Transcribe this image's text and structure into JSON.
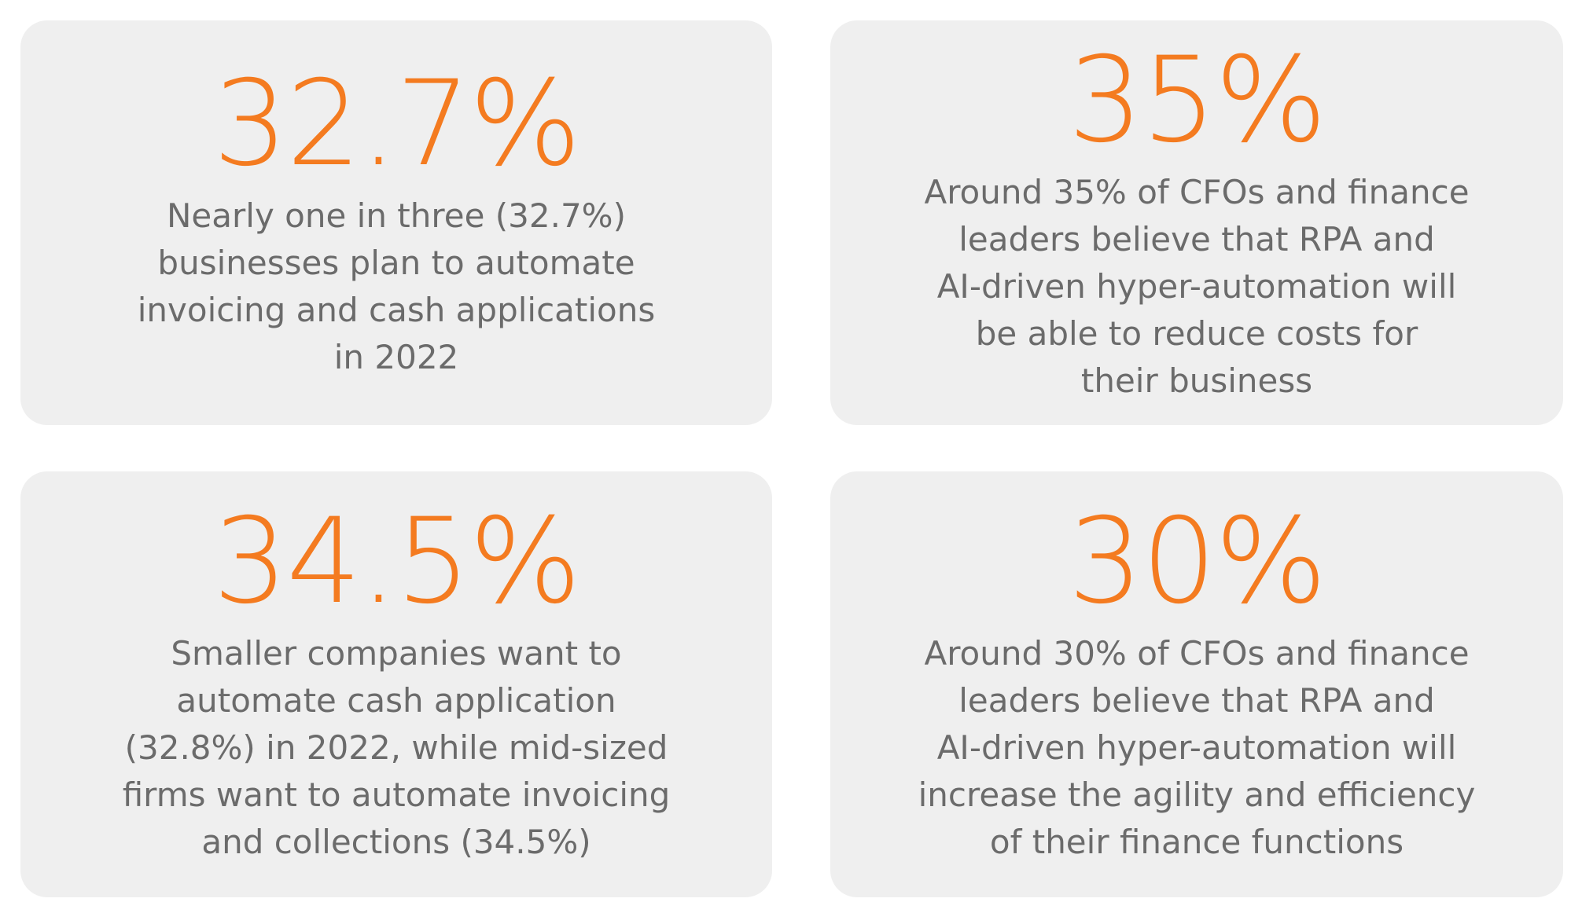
{
  "cards": [
    {
      "stat": "32.7%",
      "lines": [
        "Nearly one in three (32.7%)",
        "businesses plan to automate",
        "invoicing and cash applications",
        "in 2022"
      ]
    },
    {
      "stat": "35%",
      "lines": [
        "Around 35% of CFOs and finance",
        "leaders believe that RPA and",
        "AI-driven hyper-automation will",
        "be able to reduce costs for",
        "their business"
      ]
    },
    {
      "stat": "34.5%",
      "lines": [
        "Smaller companies want to",
        "automate cash application",
        "(32.8%) in 2022, while mid-sized",
        "firms want to automate invoicing",
        "and collections (34.5%)"
      ]
    },
    {
      "stat": "30%",
      "lines": [
        "Around 30% of CFOs and finance",
        "leaders believe that RPA and",
        "AI-driven hyper-automation will",
        "increase the agility and efficiency",
        "of their finance functions"
      ]
    }
  ]
}
